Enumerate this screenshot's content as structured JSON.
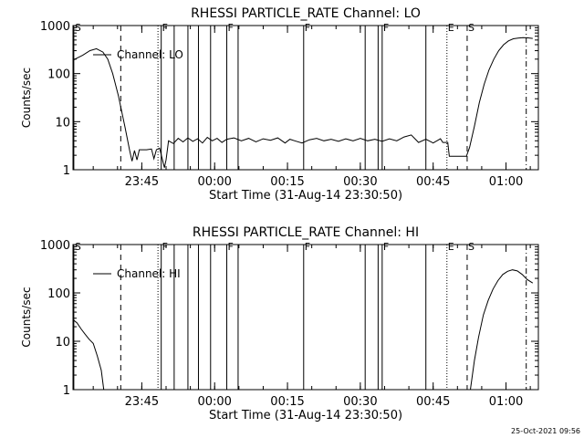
{
  "footer_timestamp": "25-Oct-2021 09:56",
  "chart_data": [
    {
      "type": "line",
      "title": "RHESSI PARTICLE_RATE Channel: LO",
      "xlabel": "Start Time (31-Aug-14 23:30:50)",
      "ylabel": "Counts/sec",
      "y_scale": "log",
      "xlim": [
        "23:30:50",
        "01:06:40"
      ],
      "ylim": [
        1,
        1000
      ],
      "x_ticks": [
        "23:45",
        "00:00",
        "00:15",
        "00:30",
        "00:45",
        "01:00"
      ],
      "y_ticks": [
        "1",
        "10",
        "100",
        "1000"
      ],
      "legend": "top-left",
      "series": [
        {
          "name": "Channel: LO",
          "points": [
            [
              "23:30:50",
              190
            ],
            [
              "23:31:40",
              210
            ],
            [
              "23:32:50",
              240
            ],
            [
              "23:34:20",
              300
            ],
            [
              "23:35:40",
              330
            ],
            [
              "23:37:00",
              280
            ],
            [
              "23:38:00",
              200
            ],
            [
              "23:39:00",
              100
            ],
            [
              "23:40:10",
              35
            ],
            [
              "23:41:30",
              8
            ],
            [
              "23:42:30",
              2.5
            ],
            [
              "23:43:00",
              1.5
            ],
            [
              "23:43:30",
              2.5
            ],
            [
              "23:44:00",
              1.6
            ],
            [
              "23:44:30",
              2.6
            ],
            [
              "23:45:00",
              2.6
            ],
            [
              "23:46:00",
              2.6
            ],
            [
              "23:47:00",
              2.7
            ],
            [
              "23:47:30",
              1.7
            ],
            [
              "23:48:00",
              2.6
            ],
            [
              "23:48:40",
              2.8
            ],
            [
              "23:49:40",
              1.1
            ],
            [
              "23:50:00",
              1.6
            ],
            [
              "23:50:30",
              4.0
            ],
            [
              "23:51:30",
              3.5
            ],
            [
              "23:52:30",
              4.5
            ],
            [
              "23:53:30",
              3.8
            ],
            [
              "23:54:30",
              4.6
            ],
            [
              "23:55:30",
              3.9
            ],
            [
              "23:56:30",
              4.4
            ],
            [
              "23:57:30",
              3.6
            ],
            [
              "23:58:30",
              4.7
            ],
            [
              "23:59:30",
              4.0
            ],
            [
              "00:00:30",
              4.5
            ],
            [
              "00:01:30",
              3.7
            ],
            [
              "00:02:30",
              4.3
            ],
            [
              "00:04:00",
              4.6
            ],
            [
              "00:05:30",
              4.0
            ],
            [
              "00:07:00",
              4.5
            ],
            [
              "00:08:30",
              3.8
            ],
            [
              "00:10:00",
              4.4
            ],
            [
              "00:11:30",
              4.1
            ],
            [
              "00:13:00",
              4.6
            ],
            [
              "00:14:30",
              3.6
            ],
            [
              "00:15:30",
              4.3
            ],
            [
              "00:16:30",
              4.0
            ],
            [
              "00:18:00",
              3.6
            ],
            [
              "00:19:30",
              4.2
            ],
            [
              "00:21:00",
              4.5
            ],
            [
              "00:22:30",
              4.0
            ],
            [
              "00:24:00",
              4.3
            ],
            [
              "00:25:30",
              3.9
            ],
            [
              "00:27:00",
              4.4
            ],
            [
              "00:28:30",
              4.0
            ],
            [
              "00:30:00",
              4.5
            ],
            [
              "00:31:30",
              4.0
            ],
            [
              "00:33:00",
              4.3
            ],
            [
              "00:34:30",
              3.9
            ],
            [
              "00:36:00",
              4.4
            ],
            [
              "00:37:30",
              4.0
            ],
            [
              "00:39:00",
              4.8
            ],
            [
              "00:40:30",
              5.3
            ],
            [
              "00:42:00",
              3.7
            ],
            [
              "00:43:30",
              4.3
            ],
            [
              "00:45:00",
              3.6
            ],
            [
              "00:46:30",
              4.4
            ],
            [
              "00:47:00",
              3.7
            ],
            [
              "00:48:00",
              3.7
            ],
            [
              "00:48:20",
              1.9
            ],
            [
              "00:50:00",
              1.9
            ],
            [
              "00:51:50",
              1.9
            ],
            [
              "00:52:30",
              2.9
            ],
            [
              "00:53:30",
              8
            ],
            [
              "00:54:30",
              25
            ],
            [
              "00:55:30",
              60
            ],
            [
              "00:56:30",
              120
            ],
            [
              "00:57:30",
              200
            ],
            [
              "00:58:30",
              300
            ],
            [
              "00:59:30",
              400
            ],
            [
              "01:00:30",
              480
            ],
            [
              "01:01:30",
              530
            ],
            [
              "01:02:30",
              550
            ],
            [
              "01:03:30",
              560
            ],
            [
              "01:04:30",
              555
            ],
            [
              "01:05:30",
              540
            ]
          ]
        }
      ],
      "vertical_markers": [
        {
          "time": "23:31:00",
          "style": "solid",
          "label": "S"
        },
        {
          "time": "23:40:40",
          "style": "dashed",
          "label": ""
        },
        {
          "time": "23:48:20",
          "style": "dotted",
          "label": ""
        },
        {
          "time": "23:49:00",
          "style": "solid",
          "label": "F"
        },
        {
          "time": "23:51:40",
          "style": "solid",
          "label": ""
        },
        {
          "time": "23:54:30",
          "style": "solid",
          "label": ""
        },
        {
          "time": "23:56:40",
          "style": "solid",
          "label": ""
        },
        {
          "time": "23:59:10",
          "style": "solid",
          "label": ""
        },
        {
          "time": "00:02:30",
          "style": "solid",
          "label": "F"
        },
        {
          "time": "00:04:50",
          "style": "solid",
          "label": ""
        },
        {
          "time": "00:18:20",
          "style": "solid",
          "label": "F"
        },
        {
          "time": "00:31:00",
          "style": "solid",
          "label": ""
        },
        {
          "time": "00:33:40",
          "style": "solid",
          "label": ""
        },
        {
          "time": "00:34:30",
          "style": "solid",
          "label": "F"
        },
        {
          "time": "00:43:30",
          "style": "solid",
          "label": ""
        },
        {
          "time": "00:47:50",
          "style": "dotted",
          "label": "E"
        },
        {
          "time": "00:52:00",
          "style": "dashed",
          "label": "S"
        },
        {
          "time": "01:04:10",
          "style": "dashdot",
          "label": ""
        }
      ]
    },
    {
      "type": "line",
      "title": "RHESSI PARTICLE_RATE Channel: HI",
      "xlabel": "Start Time (31-Aug-14 23:30:50)",
      "ylabel": "Counts/sec",
      "y_scale": "log",
      "xlim": [
        "23:30:50",
        "01:06:40"
      ],
      "ylim": [
        1,
        1000
      ],
      "x_ticks": [
        "23:45",
        "00:00",
        "00:15",
        "00:30",
        "00:45",
        "01:00"
      ],
      "y_ticks": [
        "1",
        "10",
        "100",
        "1000"
      ],
      "legend": "top-left",
      "series": [
        {
          "name": "Channel: HI",
          "points": [
            [
              "23:30:50",
              28
            ],
            [
              "23:31:40",
              24
            ],
            [
              "23:32:30",
              18
            ],
            [
              "23:33:20",
              14
            ],
            [
              "23:34:10",
              11
            ],
            [
              "23:35:00",
              9
            ],
            [
              "23:35:50",
              5
            ],
            [
              "23:36:40",
              2.5
            ],
            [
              "23:37:10",
              1
            ]
          ]
        },
        {
          "name": "",
          "points": [
            [
              "00:52:40",
              1
            ],
            [
              "00:53:30",
              4
            ],
            [
              "00:54:20",
              12
            ],
            [
              "00:55:20",
              35
            ],
            [
              "00:56:20",
              70
            ],
            [
              "00:57:20",
              120
            ],
            [
              "00:58:20",
              180
            ],
            [
              "00:59:20",
              240
            ],
            [
              "01:00:20",
              280
            ],
            [
              "01:01:20",
              300
            ],
            [
              "01:02:20",
              285
            ],
            [
              "01:03:20",
              240
            ],
            [
              "01:04:20",
              190
            ],
            [
              "01:05:30",
              160
            ]
          ]
        }
      ],
      "vertical_markers": [
        {
          "time": "23:31:00",
          "style": "solid",
          "label": "S"
        },
        {
          "time": "23:40:40",
          "style": "dashed",
          "label": ""
        },
        {
          "time": "23:48:20",
          "style": "dotted",
          "label": ""
        },
        {
          "time": "23:49:00",
          "style": "solid",
          "label": "F"
        },
        {
          "time": "23:51:40",
          "style": "solid",
          "label": ""
        },
        {
          "time": "23:54:30",
          "style": "solid",
          "label": ""
        },
        {
          "time": "23:56:40",
          "style": "solid",
          "label": ""
        },
        {
          "time": "23:59:10",
          "style": "solid",
          "label": ""
        },
        {
          "time": "00:02:30",
          "style": "solid",
          "label": "F"
        },
        {
          "time": "00:04:50",
          "style": "solid",
          "label": ""
        },
        {
          "time": "00:18:20",
          "style": "solid",
          "label": "F"
        },
        {
          "time": "00:31:00",
          "style": "solid",
          "label": ""
        },
        {
          "time": "00:33:40",
          "style": "solid",
          "label": ""
        },
        {
          "time": "00:34:30",
          "style": "solid",
          "label": "F"
        },
        {
          "time": "00:43:30",
          "style": "solid",
          "label": ""
        },
        {
          "time": "00:47:50",
          "style": "dotted",
          "label": "E"
        },
        {
          "time": "00:52:00",
          "style": "dashed",
          "label": "S"
        },
        {
          "time": "01:04:10",
          "style": "dashdot",
          "label": ""
        }
      ]
    }
  ]
}
